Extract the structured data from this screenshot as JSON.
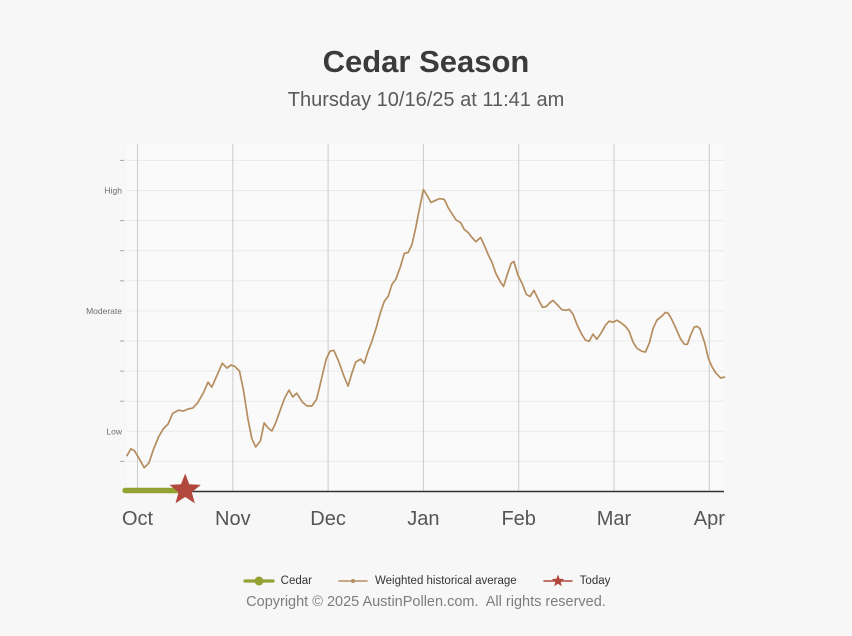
{
  "chart": {
    "title": "Cedar Season",
    "subtitle": "Thursday 10/16/25 at 11:41 am"
  },
  "chart_data": {
    "type": "line",
    "title": "Cedar Season",
    "subtitle": "Thursday 10/16/25 at 11:41 am",
    "grid": true,
    "legend_position": "bottom",
    "x_axis": {
      "tick_labels": [
        "Oct",
        "Nov",
        "Dec",
        "Jan",
        "Feb",
        "Mar",
        "Apr"
      ],
      "unit": "month (0 = Oct gridline)",
      "range": [
        -0.13,
        6.16
      ]
    },
    "y_axis": {
      "tick_count": 11,
      "labeled_ticks": {
        "2": "Low",
        "6": "Moderate",
        "10": "High"
      },
      "range": [
        0,
        11.5
      ]
    },
    "series": [
      {
        "name": "Cedar",
        "color": "#93a232",
        "style": "thick-line-on-baseline",
        "points": [
          [
            -0.13,
            0
          ],
          [
            0.45,
            0
          ]
        ]
      },
      {
        "name": "Weighted historical average",
        "color": "#b58d5e",
        "style": "thin-line",
        "points": [
          [
            -0.11,
            1.19
          ],
          [
            -0.07,
            1.42
          ],
          [
            -0.03,
            1.35
          ],
          [
            0.03,
            1.02
          ],
          [
            0.07,
            0.79
          ],
          [
            0.12,
            0.95
          ],
          [
            0.17,
            1.42
          ],
          [
            0.22,
            1.81
          ],
          [
            0.27,
            2.08
          ],
          [
            0.32,
            2.24
          ],
          [
            0.37,
            2.6
          ],
          [
            0.43,
            2.7
          ],
          [
            0.48,
            2.67
          ],
          [
            0.53,
            2.74
          ],
          [
            0.58,
            2.77
          ],
          [
            0.63,
            2.94
          ],
          [
            0.69,
            3.27
          ],
          [
            0.74,
            3.63
          ],
          [
            0.78,
            3.47
          ],
          [
            0.83,
            3.83
          ],
          [
            0.89,
            4.26
          ],
          [
            0.94,
            4.1
          ],
          [
            0.98,
            4.2
          ],
          [
            1.02,
            4.16
          ],
          [
            1.07,
            4.0
          ],
          [
            1.11,
            3.4
          ],
          [
            1.16,
            2.4
          ],
          [
            1.2,
            1.75
          ],
          [
            1.24,
            1.48
          ],
          [
            1.29,
            1.68
          ],
          [
            1.33,
            2.28
          ],
          [
            1.37,
            2.11
          ],
          [
            1.41,
            2.01
          ],
          [
            1.45,
            2.28
          ],
          [
            1.51,
            2.81
          ],
          [
            1.55,
            3.14
          ],
          [
            1.59,
            3.37
          ],
          [
            1.63,
            3.14
          ],
          [
            1.67,
            3.27
          ],
          [
            1.73,
            2.97
          ],
          [
            1.78,
            2.84
          ],
          [
            1.83,
            2.84
          ],
          [
            1.88,
            3.07
          ],
          [
            1.93,
            3.73
          ],
          [
            1.98,
            4.4
          ],
          [
            2.02,
            4.66
          ],
          [
            2.06,
            4.69
          ],
          [
            2.11,
            4.33
          ],
          [
            2.17,
            3.8
          ],
          [
            2.21,
            3.5
          ],
          [
            2.25,
            3.93
          ],
          [
            2.29,
            4.3
          ],
          [
            2.34,
            4.4
          ],
          [
            2.38,
            4.26
          ],
          [
            2.42,
            4.66
          ],
          [
            2.46,
            4.99
          ],
          [
            2.5,
            5.39
          ],
          [
            2.55,
            5.95
          ],
          [
            2.59,
            6.32
          ],
          [
            2.63,
            6.48
          ],
          [
            2.67,
            6.88
          ],
          [
            2.71,
            7.05
          ],
          [
            2.76,
            7.48
          ],
          [
            2.8,
            7.91
          ],
          [
            2.84,
            7.94
          ],
          [
            2.88,
            8.21
          ],
          [
            2.92,
            8.77
          ],
          [
            2.95,
            9.26
          ],
          [
            3.0,
            10.03
          ],
          [
            3.04,
            9.83
          ],
          [
            3.08,
            9.6
          ],
          [
            3.12,
            9.66
          ],
          [
            3.17,
            9.73
          ],
          [
            3.22,
            9.7
          ],
          [
            3.26,
            9.43
          ],
          [
            3.3,
            9.23
          ],
          [
            3.34,
            9.03
          ],
          [
            3.39,
            8.93
          ],
          [
            3.43,
            8.7
          ],
          [
            3.47,
            8.6
          ],
          [
            3.51,
            8.44
          ],
          [
            3.55,
            8.3
          ],
          [
            3.6,
            8.44
          ],
          [
            3.64,
            8.17
          ],
          [
            3.68,
            7.87
          ],
          [
            3.72,
            7.61
          ],
          [
            3.76,
            7.25
          ],
          [
            3.81,
            6.95
          ],
          [
            3.84,
            6.81
          ],
          [
            3.88,
            7.21
          ],
          [
            3.92,
            7.58
          ],
          [
            3.95,
            7.64
          ],
          [
            3.99,
            7.21
          ],
          [
            4.04,
            6.88
          ],
          [
            4.08,
            6.55
          ],
          [
            4.12,
            6.48
          ],
          [
            4.16,
            6.68
          ],
          [
            4.2,
            6.42
          ],
          [
            4.25,
            6.12
          ],
          [
            4.29,
            6.15
          ],
          [
            4.33,
            6.28
          ],
          [
            4.36,
            6.35
          ],
          [
            4.4,
            6.22
          ],
          [
            4.45,
            6.05
          ],
          [
            4.49,
            6.02
          ],
          [
            4.53,
            6.05
          ],
          [
            4.57,
            5.89
          ],
          [
            4.61,
            5.56
          ],
          [
            4.66,
            5.23
          ],
          [
            4.7,
            5.03
          ],
          [
            4.74,
            4.99
          ],
          [
            4.78,
            5.23
          ],
          [
            4.82,
            5.06
          ],
          [
            4.87,
            5.29
          ],
          [
            4.91,
            5.52
          ],
          [
            4.95,
            5.66
          ],
          [
            4.99,
            5.62
          ],
          [
            5.03,
            5.69
          ],
          [
            5.08,
            5.59
          ],
          [
            5.12,
            5.49
          ],
          [
            5.16,
            5.32
          ],
          [
            5.2,
            4.96
          ],
          [
            5.24,
            4.76
          ],
          [
            5.29,
            4.66
          ],
          [
            5.33,
            4.63
          ],
          [
            5.37,
            4.93
          ],
          [
            5.41,
            5.42
          ],
          [
            5.45,
            5.69
          ],
          [
            5.5,
            5.82
          ],
          [
            5.54,
            5.95
          ],
          [
            5.57,
            5.92
          ],
          [
            5.61,
            5.69
          ],
          [
            5.65,
            5.42
          ],
          [
            5.7,
            5.06
          ],
          [
            5.74,
            4.89
          ],
          [
            5.77,
            4.89
          ],
          [
            5.8,
            5.16
          ],
          [
            5.84,
            5.46
          ],
          [
            5.87,
            5.49
          ],
          [
            5.9,
            5.42
          ],
          [
            5.95,
            4.96
          ],
          [
            5.99,
            4.43
          ],
          [
            6.03,
            4.13
          ],
          [
            6.07,
            3.93
          ],
          [
            6.12,
            3.77
          ],
          [
            6.16,
            3.8
          ]
        ]
      },
      {
        "name": "Today",
        "color": "#b2473e",
        "style": "star-marker",
        "points": [
          [
            0.5,
            0
          ]
        ]
      }
    ]
  },
  "legend": {
    "items": [
      {
        "label": "Cedar",
        "color": "#93a232",
        "marker": "line-dot"
      },
      {
        "label": "Weighted historical average",
        "color": "#b58d5e",
        "marker": "line-small-dot"
      },
      {
        "label": "Today",
        "color": "#b2473e",
        "marker": "line-star"
      }
    ]
  },
  "footer": {
    "copyright": "Copyright © 2025 AustinPollen.com.  All rights reserved."
  },
  "colors": {
    "background": "#f7f7f7",
    "plot_background": "#fafafa",
    "axis_line": "#333333",
    "v_grid": "#cccccc",
    "h_grid": "#eaeaea",
    "tick_dash": "#aaaaaa",
    "month_label": "#555555",
    "level_label": "#6e6e6e"
  }
}
